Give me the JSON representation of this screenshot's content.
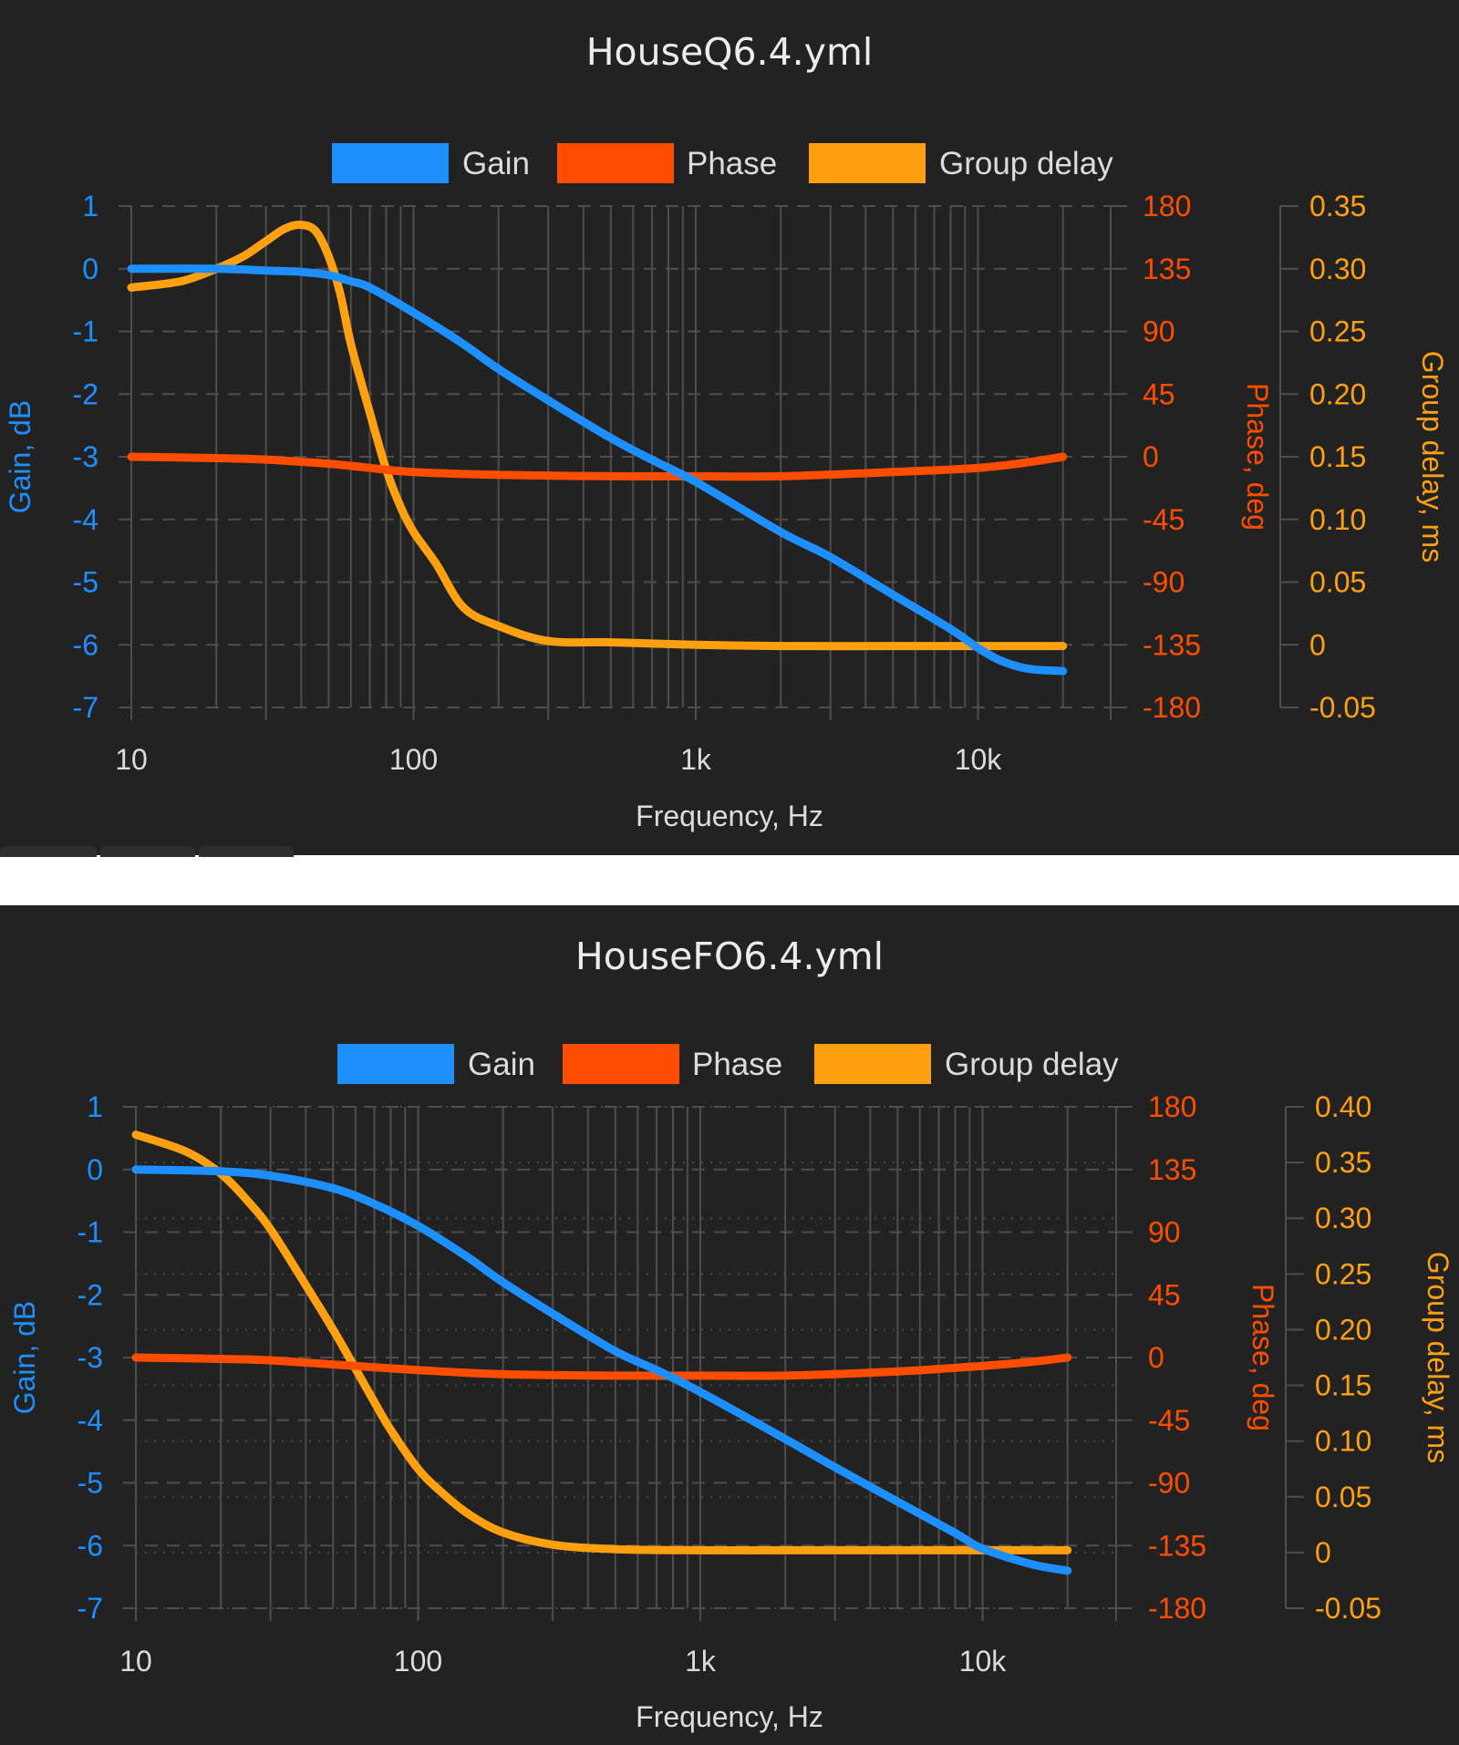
{
  "colors": {
    "background": "#222222",
    "grid": "#4e4e4e",
    "gain": "#1e8fff",
    "phase": "#ff4d00",
    "group_delay": "#ffa010",
    "text": "#dcdcdc"
  },
  "chart_data": [
    {
      "type": "line",
      "title": "HouseQ6.4.yml",
      "xlabel": "Frequency, Hz",
      "xscale": "log",
      "xlim": [
        10,
        30000
      ],
      "xticks": [
        10,
        100,
        1000,
        10000
      ],
      "xticklabels": [
        "10",
        "100",
        "1k",
        "10k"
      ],
      "legend": [
        "Gain",
        "Phase",
        "Group delay"
      ],
      "legend_position": "top-center",
      "grid": true,
      "axes": {
        "gain": {
          "label": "Gain, dB",
          "ylim": [
            -7,
            1
          ],
          "ticks": [
            "1",
            "0",
            "-1",
            "-2",
            "-3",
            "-4",
            "-5",
            "-6",
            "-7"
          ]
        },
        "phase": {
          "label": "Phase, deg",
          "ylim": [
            -180,
            180
          ],
          "ticks": [
            "180",
            "135",
            "90",
            "45",
            "0",
            "-45",
            "-90",
            "-135",
            "-180"
          ]
        },
        "group_delay": {
          "label": "Group delay, ms",
          "ylim": [
            -0.05,
            0.35
          ],
          "ticks": [
            "0.35",
            "0.30",
            "0.25",
            "0.20",
            "0.15",
            "0.10",
            "0.05",
            "0",
            "-0.05"
          ]
        }
      },
      "series": [
        {
          "name": "Gain",
          "axis": "gain",
          "color": "#1e8fff",
          "x": [
            10,
            20,
            30,
            40,
            50,
            60,
            70,
            100,
            150,
            200,
            300,
            500,
            700,
            1000,
            2000,
            3000,
            5000,
            8000,
            10000,
            12000,
            15000,
            20000
          ],
          "y": [
            0,
            0,
            -0.03,
            -0.05,
            -0.1,
            -0.2,
            -0.3,
            -0.7,
            -1.2,
            -1.6,
            -2.1,
            -2.7,
            -3.05,
            -3.4,
            -4.2,
            -4.6,
            -5.2,
            -5.75,
            -6.05,
            -6.25,
            -6.38,
            -6.42
          ]
        },
        {
          "name": "Phase",
          "axis": "phase",
          "color": "#ff4d00",
          "x": [
            10,
            20,
            30,
            50,
            70,
            100,
            200,
            500,
            1000,
            2000,
            5000,
            10000,
            15000,
            20000
          ],
          "y": [
            0,
            -1,
            -2,
            -5,
            -8,
            -11,
            -13,
            -14,
            -14,
            -14,
            -11,
            -8,
            -4,
            0
          ]
        },
        {
          "name": "Group delay",
          "axis": "group_delay",
          "color": "#ffa010",
          "x": [
            10,
            15,
            20,
            25,
            30,
            35,
            40,
            45,
            50,
            55,
            60,
            70,
            80,
            90,
            100,
            120,
            150,
            200,
            300,
            500,
            1000,
            2000,
            5000,
            10000,
            20000
          ],
          "y": [
            0.285,
            0.29,
            0.3,
            0.31,
            0.322,
            0.332,
            0.335,
            0.33,
            0.31,
            0.28,
            0.24,
            0.185,
            0.14,
            0.11,
            0.09,
            0.065,
            0.03,
            0.015,
            0.003,
            0.002,
            0,
            -0.001,
            -0.001,
            -0.001,
            -0.001
          ]
        }
      ]
    },
    {
      "type": "line",
      "title": "HouseFO6.4.yml",
      "xlabel": "Frequency, Hz",
      "xscale": "log",
      "xlim": [
        10,
        30000
      ],
      "xticks": [
        10,
        100,
        1000,
        10000
      ],
      "xticklabels": [
        "10",
        "100",
        "1k",
        "10k"
      ],
      "legend": [
        "Gain",
        "Phase",
        "Group delay"
      ],
      "legend_position": "top-center",
      "grid": true,
      "axes": {
        "gain": {
          "label": "Gain, dB",
          "ylim": [
            -7,
            1
          ],
          "ticks": [
            "1",
            "0",
            "-1",
            "-2",
            "-3",
            "-4",
            "-5",
            "-6",
            "-7"
          ]
        },
        "phase": {
          "label": "Phase, deg",
          "ylim": [
            -180,
            180
          ],
          "ticks": [
            "180",
            "135",
            "90",
            "45",
            "0",
            "-45",
            "-90",
            "-135",
            "-180"
          ]
        },
        "group_delay": {
          "label": "Group delay, ms",
          "ylim": [
            -0.05,
            0.4
          ],
          "ticks": [
            "0.40",
            "0.35",
            "0.30",
            "0.25",
            "0.20",
            "0.15",
            "0.10",
            "0.05",
            "0",
            "-0.05"
          ]
        }
      },
      "series": [
        {
          "name": "Gain",
          "axis": "gain",
          "color": "#1e8fff",
          "x": [
            10,
            20,
            30,
            50,
            70,
            100,
            150,
            200,
            300,
            500,
            700,
            1000,
            2000,
            3000,
            5000,
            8000,
            10000,
            15000,
            20000
          ],
          "y": [
            0,
            -0.03,
            -0.1,
            -0.3,
            -0.55,
            -0.9,
            -1.4,
            -1.8,
            -2.3,
            -2.9,
            -3.2,
            -3.55,
            -4.3,
            -4.75,
            -5.3,
            -5.8,
            -6.05,
            -6.3,
            -6.4
          ]
        },
        {
          "name": "Phase",
          "axis": "phase",
          "color": "#ff4d00",
          "x": [
            10,
            20,
            30,
            50,
            100,
            200,
            500,
            1000,
            2000,
            5000,
            10000,
            15000,
            20000
          ],
          "y": [
            0,
            -1,
            -2,
            -5,
            -9,
            -12,
            -13,
            -13,
            -13,
            -10,
            -6,
            -3,
            0
          ]
        },
        {
          "name": "Group delay",
          "axis": "group_delay",
          "color": "#ffa010",
          "x": [
            10,
            15,
            20,
            25,
            30,
            40,
            50,
            60,
            70,
            80,
            100,
            120,
            150,
            200,
            300,
            500,
            1000,
            2000,
            5000,
            10000,
            20000
          ],
          "y": [
            0.375,
            0.36,
            0.34,
            0.315,
            0.29,
            0.24,
            0.2,
            0.165,
            0.135,
            0.11,
            0.075,
            0.055,
            0.035,
            0.018,
            0.007,
            0.003,
            0.002,
            0.002,
            0.002,
            0.002,
            0.002
          ]
        }
      ]
    }
  ]
}
